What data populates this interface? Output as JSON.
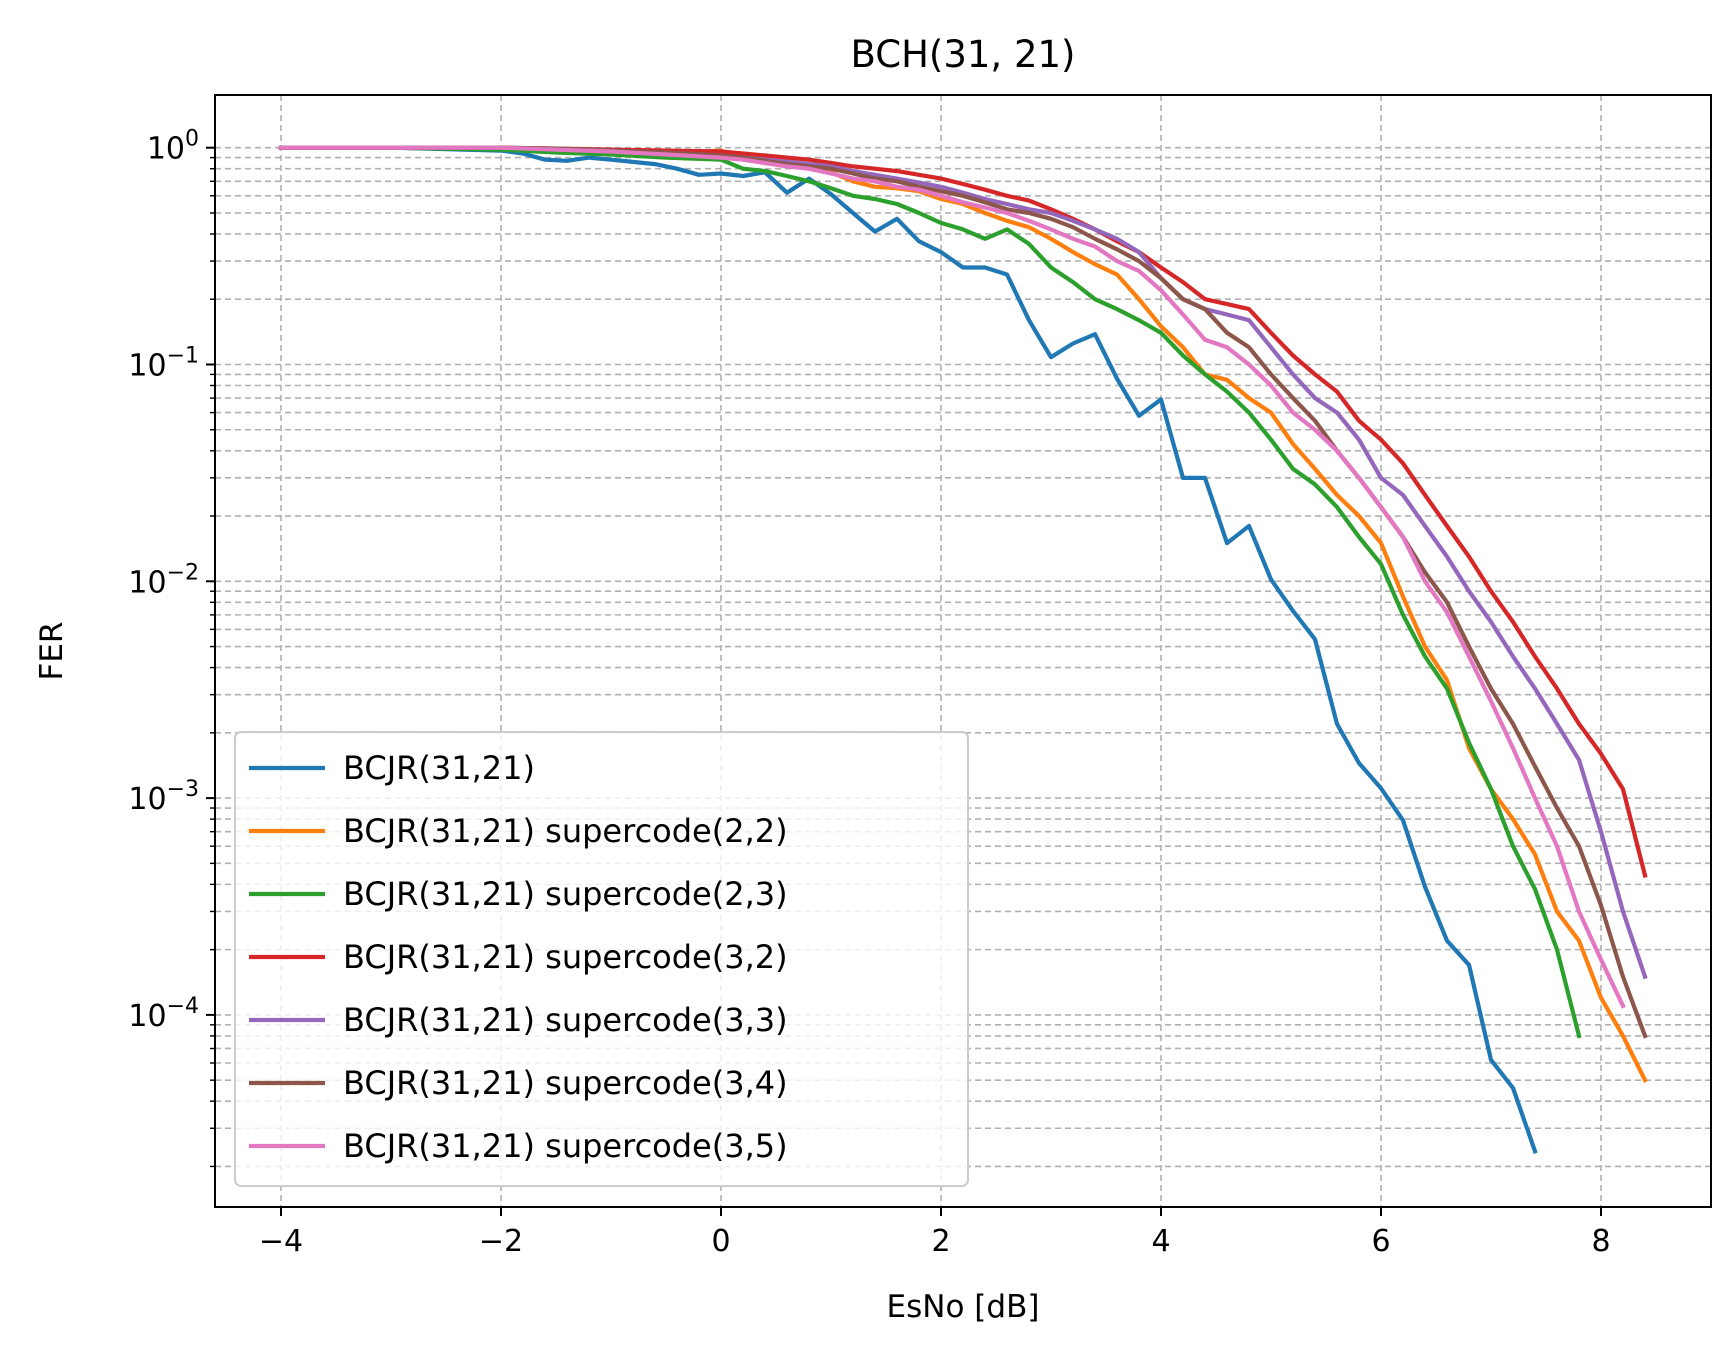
{
  "chart_data": {
    "type": "line",
    "title": "BCH(31, 21)",
    "xlabel": "EsNo [dB]",
    "ylabel": "FER",
    "xlim": [
      -4.6,
      9.0
    ],
    "ylim": [
      1.3e-05,
      1.75
    ],
    "yscale": "log",
    "grid": true,
    "legend_position": "lower-left",
    "x_ticks": [
      -4,
      -2,
      0,
      2,
      4,
      6,
      8
    ],
    "x_tick_labels": [
      "−4",
      "−2",
      "0",
      "2",
      "4",
      "6",
      "8"
    ],
    "y_ticks": [
      0.0001,
      0.001,
      0.01,
      0.1,
      1
    ],
    "y_tick_labels": [
      {
        "base": "10",
        "exp": "−4"
      },
      {
        "base": "10",
        "exp": "−3"
      },
      {
        "base": "10",
        "exp": "−2"
      },
      {
        "base": "10",
        "exp": "−1"
      },
      {
        "base": "10",
        "exp": "0"
      }
    ],
    "series": [
      {
        "name": "BCJR(31,21)",
        "color": "#1f77b4",
        "x": [
          -4,
          -3,
          -2,
          -1.8,
          -1.6,
          -1.4,
          -1.2,
          -1.0,
          -0.8,
          -0.6,
          -0.4,
          -0.2,
          0,
          0.2,
          0.4,
          0.6,
          0.8,
          1.0,
          1.2,
          1.4,
          1.6,
          1.8,
          2.0,
          2.2,
          2.4,
          2.6,
          2.8,
          3.0,
          3.2,
          3.4,
          3.6,
          3.8,
          4.0,
          4.2,
          4.4,
          4.6,
          4.8,
          5.0,
          5.2,
          5.4,
          5.6,
          5.8,
          6.0,
          6.2,
          6.4,
          6.6,
          6.8,
          7.0,
          7.2,
          7.4
        ],
        "values": [
          1.0,
          1.0,
          0.97,
          0.94,
          0.88,
          0.87,
          0.9,
          0.88,
          0.86,
          0.84,
          0.8,
          0.75,
          0.76,
          0.74,
          0.77,
          0.62,
          0.72,
          0.61,
          0.5,
          0.41,
          0.47,
          0.37,
          0.33,
          0.28,
          0.28,
          0.26,
          0.16,
          0.108,
          0.125,
          0.138,
          0.086,
          0.058,
          0.069,
          0.03,
          0.03,
          0.015,
          0.018,
          0.0102,
          0.0073,
          0.0054,
          0.0022,
          0.00145,
          0.00111,
          0.00079,
          0.00039,
          0.00022,
          0.00017,
          6.2e-05,
          4.6e-05,
          2.35e-05
        ]
      },
      {
        "name": "BCJR(31,21) supercode(2,2)",
        "color": "#ff7f0e",
        "x": [
          -4,
          -3,
          -2,
          -1.5,
          -1,
          -0.5,
          0,
          0.2,
          0.4,
          0.6,
          0.8,
          1.0,
          1.2,
          1.4,
          1.6,
          1.8,
          2.0,
          2.2,
          2.4,
          2.6,
          2.8,
          3.0,
          3.2,
          3.4,
          3.6,
          3.8,
          4.0,
          4.2,
          4.4,
          4.6,
          4.8,
          5.0,
          5.2,
          5.4,
          5.6,
          5.8,
          6.0,
          6.2,
          6.4,
          6.6,
          6.8,
          7.0,
          7.2,
          7.4,
          7.6,
          7.8,
          8.0,
          8.2,
          8.4
        ],
        "values": [
          1.0,
          1.0,
          1.0,
          0.98,
          0.96,
          0.94,
          0.97,
          0.9,
          0.86,
          0.84,
          0.8,
          0.77,
          0.7,
          0.66,
          0.65,
          0.63,
          0.58,
          0.55,
          0.5,
          0.46,
          0.43,
          0.38,
          0.33,
          0.29,
          0.26,
          0.2,
          0.15,
          0.12,
          0.09,
          0.085,
          0.07,
          0.06,
          0.043,
          0.033,
          0.025,
          0.02,
          0.015,
          0.0085,
          0.005,
          0.0035,
          0.0017,
          0.0011,
          0.0008,
          0.00055,
          0.0003,
          0.00022,
          0.00012,
          8e-05,
          5e-05
        ]
      },
      {
        "name": "BCJR(31,21) supercode(2,3)",
        "color": "#2ca02c",
        "x": [
          -4,
          -3,
          -2,
          -1.5,
          -1,
          -0.5,
          0,
          0.2,
          0.4,
          0.6,
          0.8,
          1.0,
          1.2,
          1.4,
          1.6,
          1.8,
          2.0,
          2.2,
          2.4,
          2.6,
          2.8,
          3.0,
          3.2,
          3.4,
          3.6,
          3.8,
          4.0,
          4.2,
          4.4,
          4.6,
          4.8,
          5.0,
          5.2,
          5.4,
          5.6,
          5.8,
          6.0,
          6.2,
          6.4,
          6.6,
          6.8,
          7.0,
          7.2,
          7.4,
          7.6,
          7.8
        ],
        "values": [
          1.0,
          1.0,
          0.98,
          0.95,
          0.93,
          0.9,
          0.88,
          0.8,
          0.78,
          0.74,
          0.7,
          0.65,
          0.6,
          0.58,
          0.55,
          0.5,
          0.45,
          0.42,
          0.38,
          0.42,
          0.36,
          0.28,
          0.24,
          0.2,
          0.18,
          0.16,
          0.14,
          0.11,
          0.09,
          0.075,
          0.06,
          0.045,
          0.033,
          0.028,
          0.022,
          0.016,
          0.012,
          0.007,
          0.0045,
          0.0032,
          0.0018,
          0.0011,
          0.0006,
          0.00038,
          0.0002,
          8e-05
        ]
      },
      {
        "name": "BCJR(31,21) supercode(3,2)",
        "color": "#d62728",
        "x": [
          -4,
          -3,
          -2,
          -1.5,
          -1,
          -0.5,
          0,
          0.2,
          0.4,
          0.6,
          0.8,
          1.0,
          1.2,
          1.4,
          1.6,
          1.8,
          2.0,
          2.2,
          2.4,
          2.6,
          2.8,
          3.0,
          3.2,
          3.4,
          3.6,
          3.8,
          4.0,
          4.2,
          4.4,
          4.6,
          4.8,
          5.0,
          5.2,
          5.4,
          5.6,
          5.8,
          6.0,
          6.2,
          6.4,
          6.6,
          6.8,
          7.0,
          7.2,
          7.4,
          7.6,
          7.8,
          8.0,
          8.2,
          8.4
        ],
        "values": [
          1.0,
          1.0,
          1.0,
          0.99,
          0.98,
          0.97,
          0.96,
          0.94,
          0.92,
          0.9,
          0.88,
          0.85,
          0.82,
          0.8,
          0.78,
          0.75,
          0.72,
          0.68,
          0.64,
          0.6,
          0.57,
          0.52,
          0.47,
          0.42,
          0.37,
          0.33,
          0.28,
          0.24,
          0.2,
          0.19,
          0.18,
          0.14,
          0.11,
          0.09,
          0.075,
          0.055,
          0.045,
          0.035,
          0.025,
          0.018,
          0.013,
          0.009,
          0.0065,
          0.0045,
          0.0032,
          0.0022,
          0.0016,
          0.0011,
          0.00044
        ]
      },
      {
        "name": "BCJR(31,21) supercode(3,3)",
        "color": "#9467bd",
        "x": [
          -4,
          -3,
          -2,
          -1.5,
          -1,
          -0.5,
          0,
          0.2,
          0.4,
          0.6,
          0.8,
          1.0,
          1.2,
          1.4,
          1.6,
          1.8,
          2.0,
          2.2,
          2.4,
          2.6,
          2.8,
          3.0,
          3.2,
          3.4,
          3.6,
          3.8,
          4.0,
          4.2,
          4.4,
          4.6,
          4.8,
          5.0,
          5.2,
          5.4,
          5.6,
          5.8,
          6.0,
          6.2,
          6.4,
          6.6,
          6.8,
          7.0,
          7.2,
          7.4,
          7.6,
          7.8,
          8.0,
          8.2,
          8.4
        ],
        "values": [
          1.0,
          1.0,
          1.0,
          0.99,
          0.97,
          0.95,
          0.92,
          0.9,
          0.88,
          0.86,
          0.84,
          0.82,
          0.78,
          0.75,
          0.72,
          0.69,
          0.66,
          0.62,
          0.58,
          0.55,
          0.52,
          0.5,
          0.46,
          0.42,
          0.38,
          0.33,
          0.25,
          0.2,
          0.18,
          0.17,
          0.16,
          0.12,
          0.09,
          0.07,
          0.06,
          0.045,
          0.03,
          0.025,
          0.018,
          0.013,
          0.009,
          0.0065,
          0.0045,
          0.0032,
          0.0022,
          0.0015,
          0.0007,
          0.0003,
          0.00015
        ]
      },
      {
        "name": "BCJR(31,21) supercode(3,4)",
        "color": "#8c564b",
        "x": [
          -4,
          -3,
          -2,
          -1.5,
          -1,
          -0.5,
          0,
          0.2,
          0.4,
          0.6,
          0.8,
          1.0,
          1.2,
          1.4,
          1.6,
          1.8,
          2.0,
          2.2,
          2.4,
          2.6,
          2.8,
          3.0,
          3.2,
          3.4,
          3.6,
          3.8,
          4.0,
          4.2,
          4.4,
          4.6,
          4.8,
          5.0,
          5.2,
          5.4,
          5.6,
          5.8,
          6.0,
          6.2,
          6.4,
          6.6,
          6.8,
          7.0,
          7.2,
          7.4,
          7.6,
          7.8,
          8.0,
          8.2,
          8.4
        ],
        "values": [
          1.0,
          1.0,
          1.0,
          0.99,
          0.97,
          0.95,
          0.92,
          0.9,
          0.87,
          0.84,
          0.82,
          0.8,
          0.76,
          0.72,
          0.7,
          0.66,
          0.63,
          0.6,
          0.56,
          0.52,
          0.5,
          0.47,
          0.43,
          0.38,
          0.34,
          0.3,
          0.25,
          0.2,
          0.18,
          0.14,
          0.12,
          0.09,
          0.07,
          0.055,
          0.04,
          0.03,
          0.022,
          0.016,
          0.011,
          0.008,
          0.005,
          0.0032,
          0.0022,
          0.0014,
          0.0009,
          0.0006,
          0.00032,
          0.00015,
          8e-05
        ]
      },
      {
        "name": "BCJR(31,21) supercode(3,5)",
        "color": "#e377c2",
        "x": [
          -4,
          -3,
          -2,
          -1.5,
          -1,
          -0.5,
          0,
          0.2,
          0.4,
          0.6,
          0.8,
          1.0,
          1.2,
          1.4,
          1.6,
          1.8,
          2.0,
          2.2,
          2.4,
          2.6,
          2.8,
          3.0,
          3.2,
          3.4,
          3.6,
          3.8,
          4.0,
          4.2,
          4.4,
          4.6,
          4.8,
          5.0,
          5.2,
          5.4,
          5.6,
          5.8,
          6.0,
          6.2,
          6.4,
          6.6,
          6.8,
          7.0,
          7.2,
          7.4,
          7.6,
          7.8,
          8.0,
          8.2
        ],
        "values": [
          1.0,
          1.0,
          1.0,
          0.98,
          0.96,
          0.93,
          0.9,
          0.88,
          0.85,
          0.82,
          0.8,
          0.76,
          0.72,
          0.7,
          0.66,
          0.64,
          0.6,
          0.56,
          0.53,
          0.5,
          0.46,
          0.42,
          0.38,
          0.35,
          0.3,
          0.27,
          0.22,
          0.17,
          0.13,
          0.12,
          0.1,
          0.08,
          0.06,
          0.05,
          0.04,
          0.03,
          0.022,
          0.016,
          0.01,
          0.0072,
          0.0045,
          0.0028,
          0.0017,
          0.001,
          0.0006,
          0.0003,
          0.00018,
          0.00011
        ]
      }
    ]
  }
}
